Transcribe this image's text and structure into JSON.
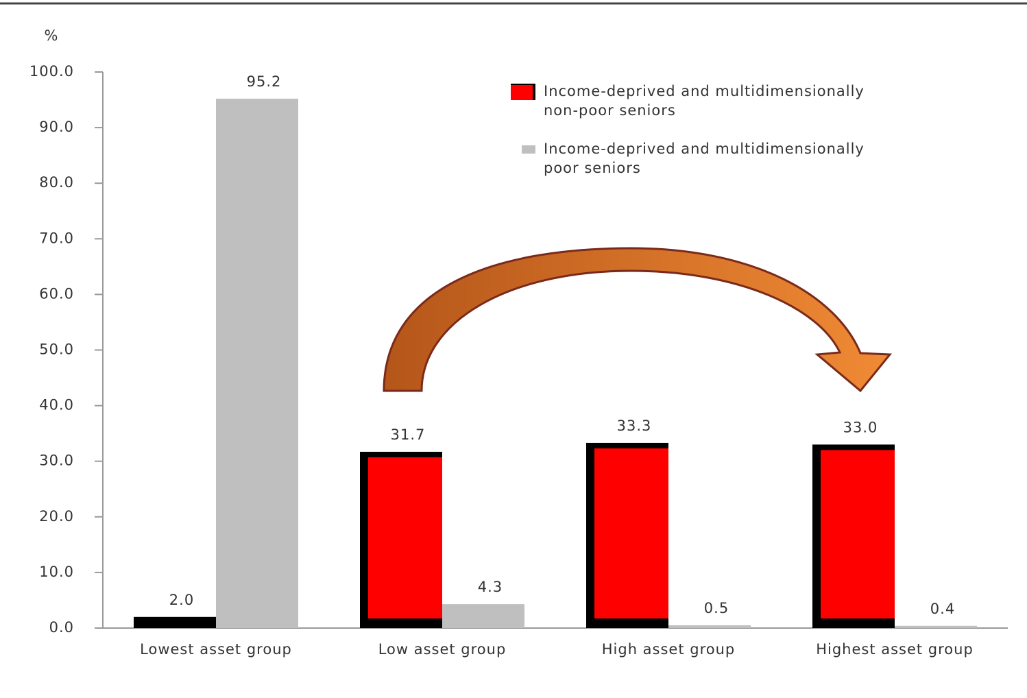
{
  "chart_data": {
    "type": "bar",
    "y_axis_label": "%",
    "categories": [
      "Lowest asset group",
      "Low asset group",
      "High asset group",
      "Highest asset group"
    ],
    "series": [
      {
        "name": "Income-deprived and multidimensionally non-poor seniors",
        "color": "#ff0000",
        "edge_color": "#000000",
        "values": [
          2.0,
          31.7,
          33.3,
          33.0
        ],
        "value_labels": [
          "2.0",
          "31.7",
          "33.3",
          "33.0"
        ]
      },
      {
        "name": "Income-deprived and multidimensionally poor seniors",
        "color": "#bfbfbf",
        "values": [
          95.2,
          4.3,
          0.5,
          0.4
        ],
        "value_labels": [
          "95.2",
          "4.3",
          "0.5",
          "0.4"
        ]
      }
    ],
    "ylim": [
      0,
      100
    ],
    "yticks": [
      {
        "value": 0,
        "label": "0.0"
      },
      {
        "value": 10,
        "label": "10.0"
      },
      {
        "value": 20,
        "label": "20.0"
      },
      {
        "value": 30,
        "label": "30.0"
      },
      {
        "value": 40,
        "label": "40.0"
      },
      {
        "value": 50,
        "label": "50.0"
      },
      {
        "value": 60,
        "label": "60.0"
      },
      {
        "value": 70,
        "label": "70.0"
      },
      {
        "value": 80,
        "label": "80.0"
      },
      {
        "value": 90,
        "label": "90.0"
      },
      {
        "value": 100,
        "label": "100.0"
      }
    ],
    "legend": "upper right"
  }
}
